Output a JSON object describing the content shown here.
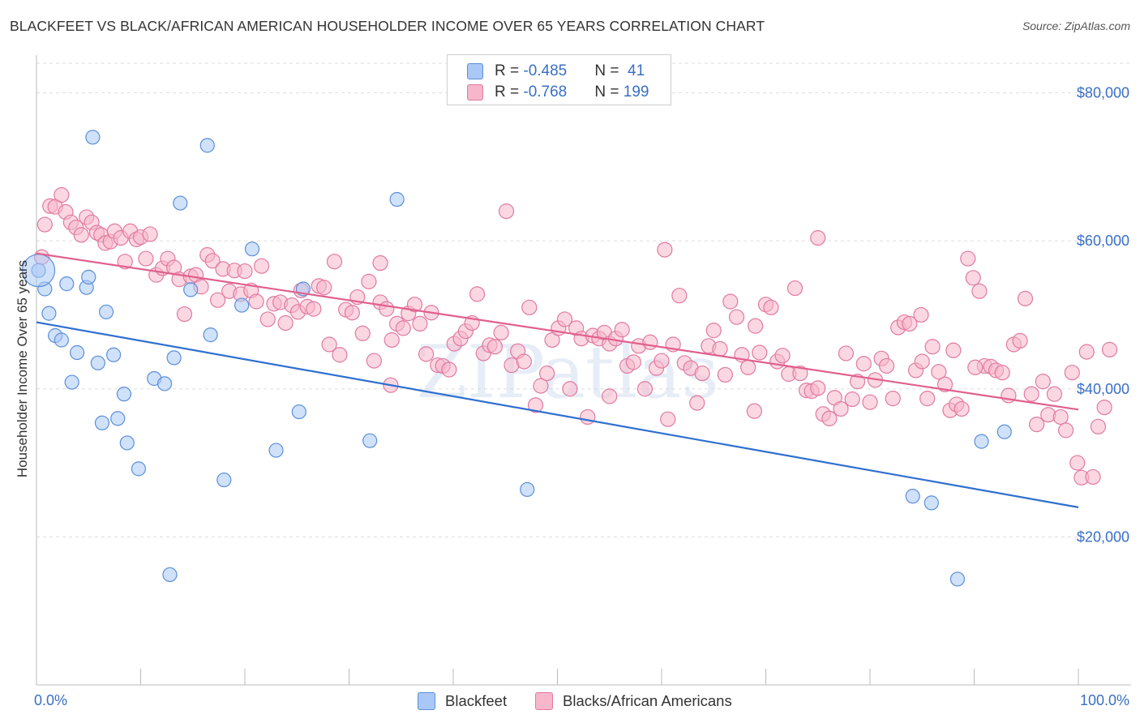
{
  "header": {
    "title": "BLACKFEET VS BLACK/AFRICAN AMERICAN HOUSEHOLDER INCOME OVER 65 YEARS CORRELATION CHART",
    "source": "Source: ZipAtlas.com"
  },
  "watermark": "ZIPatlas",
  "legend": {
    "rows": [
      {
        "r_label": "R = ",
        "r_value": "-0.485",
        "n_label": "N = ",
        "n_value": " 41",
        "color": "#a9c8f5"
      },
      {
        "r_label": "R = ",
        "r_value": "-0.768",
        "n_label": "N = ",
        "n_value": "199",
        "color": "#f7b6ca"
      }
    ]
  },
  "bottom_legend": [
    {
      "label": "Blackfeet",
      "color": "#a9c8f5"
    },
    {
      "label": "Blacks/African Americans",
      "color": "#f7b6ca"
    }
  ],
  "colors": {
    "blue_fill": "#a9c8f5",
    "blue_stroke": "#5b8fd9",
    "blue_line": "#2f6fd0",
    "pink_fill": "#f7b6ca",
    "pink_stroke": "#e07aa0",
    "pink_line": "#e0608e",
    "grid": "#dddddd",
    "tick_text": "#3a6fc4"
  },
  "chart_data": {
    "type": "scatter",
    "title": "BLACKFEET VS BLACK/AFRICAN AMERICAN HOUSEHOLDER INCOME OVER 65 YEARS CORRELATION CHART",
    "xlabel": "",
    "ylabel": "Householder Income Over 65 years",
    "xlim": [
      0,
      100
    ],
    "ylim": [
      0,
      84000
    ],
    "x_tick_labels": [
      "0.0%",
      "100.0%"
    ],
    "y_ticks": [
      20000,
      40000,
      60000,
      80000
    ],
    "y_tick_labels": [
      "$20,000",
      "$40,000",
      "$60,000",
      "$80,000"
    ],
    "grid": true,
    "legend_position": "top-center",
    "series": [
      {
        "name": "Blackfeet",
        "trend": {
          "x": [
            0,
            100
          ],
          "y": [
            49000,
            24000
          ]
        },
        "points": [
          [
            0.2,
            56000
          ],
          [
            0.8,
            53500
          ],
          [
            1.2,
            50200
          ],
          [
            1.8,
            47200
          ],
          [
            2.4,
            46600
          ],
          [
            2.9,
            54200
          ],
          [
            3.4,
            40900
          ],
          [
            3.9,
            44900
          ],
          [
            4.8,
            53700
          ],
          [
            5.0,
            55100
          ],
          [
            5.4,
            74000
          ],
          [
            5.9,
            43500
          ],
          [
            6.3,
            35400
          ],
          [
            6.7,
            50400
          ],
          [
            7.4,
            44600
          ],
          [
            7.8,
            36000
          ],
          [
            8.4,
            39300
          ],
          [
            8.7,
            32700
          ],
          [
            9.8,
            29200
          ],
          [
            11.3,
            41400
          ],
          [
            12.3,
            40700
          ],
          [
            12.8,
            14900
          ],
          [
            13.2,
            44200
          ],
          [
            13.8,
            65100
          ],
          [
            14.8,
            53400
          ],
          [
            16.4,
            72900
          ],
          [
            16.7,
            47300
          ],
          [
            18.0,
            27700
          ],
          [
            19.7,
            51300
          ],
          [
            20.7,
            58900
          ],
          [
            23.0,
            31700
          ],
          [
            25.2,
            36900
          ],
          [
            25.6,
            53500
          ],
          [
            32.0,
            33000
          ],
          [
            34.6,
            65600
          ],
          [
            47.1,
            26400
          ],
          [
            84.1,
            25500
          ],
          [
            85.9,
            24600
          ],
          [
            88.4,
            14300
          ],
          [
            90.7,
            32900
          ],
          [
            92.9,
            34200
          ]
        ]
      },
      {
        "name": "Blacks/African Americans",
        "trend": {
          "x": [
            0,
            100
          ],
          "y": [
            58300,
            37200
          ]
        },
        "points": [
          [
            0.5,
            57800
          ],
          [
            0.8,
            62200
          ],
          [
            1.3,
            64700
          ],
          [
            1.8,
            64600
          ],
          [
            2.4,
            66200
          ],
          [
            2.8,
            63900
          ],
          [
            3.3,
            62500
          ],
          [
            3.8,
            61800
          ],
          [
            4.3,
            60800
          ],
          [
            4.8,
            63200
          ],
          [
            5.3,
            62500
          ],
          [
            5.8,
            61100
          ],
          [
            6.2,
            60800
          ],
          [
            6.6,
            59700
          ],
          [
            7.1,
            59900
          ],
          [
            7.5,
            61300
          ],
          [
            8.1,
            60400
          ],
          [
            8.5,
            57200
          ],
          [
            9.0,
            61300
          ],
          [
            9.6,
            60200
          ],
          [
            10.0,
            60500
          ],
          [
            10.5,
            57600
          ],
          [
            10.9,
            60900
          ],
          [
            11.5,
            55400
          ],
          [
            12.1,
            56300
          ],
          [
            12.6,
            57600
          ],
          [
            13.2,
            56400
          ],
          [
            13.7,
            54800
          ],
          [
            14.2,
            50100
          ],
          [
            14.8,
            55200
          ],
          [
            15.3,
            55400
          ],
          [
            15.8,
            53800
          ],
          [
            16.4,
            58100
          ],
          [
            16.9,
            57300
          ],
          [
            17.4,
            52000
          ],
          [
            17.9,
            56200
          ],
          [
            18.5,
            53200
          ],
          [
            19.0,
            56000
          ],
          [
            19.6,
            52800
          ],
          [
            20.0,
            55900
          ],
          [
            20.6,
            53300
          ],
          [
            21.1,
            51800
          ],
          [
            21.6,
            56600
          ],
          [
            22.2,
            49400
          ],
          [
            22.8,
            51500
          ],
          [
            23.4,
            51700
          ],
          [
            23.9,
            48900
          ],
          [
            24.5,
            51300
          ],
          [
            25.1,
            50400
          ],
          [
            25.4,
            53300
          ],
          [
            26.0,
            51100
          ],
          [
            26.6,
            50800
          ],
          [
            27.1,
            53900
          ],
          [
            27.6,
            53700
          ],
          [
            28.1,
            46000
          ],
          [
            28.6,
            57200
          ],
          [
            29.1,
            44600
          ],
          [
            29.7,
            50700
          ],
          [
            30.3,
            50300
          ],
          [
            30.8,
            52400
          ],
          [
            31.3,
            47500
          ],
          [
            31.9,
            54500
          ],
          [
            32.4,
            43800
          ],
          [
            33.0,
            51700
          ],
          [
            33.6,
            50800
          ],
          [
            34.1,
            46600
          ],
          [
            34.6,
            48800
          ],
          [
            35.2,
            48200
          ],
          [
            35.7,
            50200
          ],
          [
            36.3,
            51400
          ],
          [
            36.8,
            48800
          ],
          [
            37.4,
            44700
          ],
          [
            37.9,
            50300
          ],
          [
            38.5,
            43200
          ],
          [
            39.0,
            43100
          ],
          [
            39.6,
            42600
          ],
          [
            40.1,
            46100
          ],
          [
            40.7,
            46800
          ],
          [
            41.2,
            47800
          ],
          [
            41.8,
            48900
          ],
          [
            42.3,
            52800
          ],
          [
            42.9,
            44800
          ],
          [
            43.5,
            45900
          ],
          [
            44.0,
            45700
          ],
          [
            44.6,
            47600
          ],
          [
            45.1,
            64000
          ],
          [
            45.6,
            43200
          ],
          [
            46.2,
            45100
          ],
          [
            46.8,
            43700
          ],
          [
            47.3,
            51000
          ],
          [
            47.9,
            37800
          ],
          [
            48.4,
            40400
          ],
          [
            49.0,
            42100
          ],
          [
            49.5,
            46600
          ],
          [
            50.1,
            48200
          ],
          [
            50.7,
            49400
          ],
          [
            51.2,
            40000
          ],
          [
            51.8,
            48200
          ],
          [
            52.3,
            46800
          ],
          [
            52.9,
            36200
          ],
          [
            53.4,
            47200
          ],
          [
            54.0,
            46800
          ],
          [
            54.5,
            47600
          ],
          [
            55.0,
            46100
          ],
          [
            55.6,
            46800
          ],
          [
            56.2,
            48000
          ],
          [
            56.7,
            43100
          ],
          [
            57.3,
            43600
          ],
          [
            57.8,
            45800
          ],
          [
            58.4,
            40000
          ],
          [
            58.9,
            46300
          ],
          [
            59.5,
            42800
          ],
          [
            60.0,
            43800
          ],
          [
            60.6,
            35900
          ],
          [
            61.1,
            46000
          ],
          [
            61.7,
            52600
          ],
          [
            62.2,
            43500
          ],
          [
            62.8,
            42800
          ],
          [
            63.4,
            38100
          ],
          [
            63.9,
            42100
          ],
          [
            64.5,
            45800
          ],
          [
            65.0,
            47900
          ],
          [
            65.6,
            45400
          ],
          [
            66.1,
            41900
          ],
          [
            66.6,
            51800
          ],
          [
            67.2,
            49700
          ],
          [
            67.7,
            44600
          ],
          [
            68.3,
            42900
          ],
          [
            68.9,
            37000
          ],
          [
            69.4,
            44900
          ],
          [
            70.0,
            51400
          ],
          [
            70.5,
            51000
          ],
          [
            71.1,
            43700
          ],
          [
            71.6,
            44500
          ],
          [
            72.2,
            42000
          ],
          [
            72.8,
            53600
          ],
          [
            73.3,
            42100
          ],
          [
            73.9,
            39800
          ],
          [
            74.4,
            39700
          ],
          [
            75.0,
            40100
          ],
          [
            75.5,
            36600
          ],
          [
            76.1,
            36000
          ],
          [
            76.6,
            38800
          ],
          [
            77.2,
            37300
          ],
          [
            77.7,
            44800
          ],
          [
            78.3,
            38600
          ],
          [
            78.8,
            41000
          ],
          [
            79.4,
            43400
          ],
          [
            80.0,
            38200
          ],
          [
            80.5,
            41200
          ],
          [
            81.1,
            44100
          ],
          [
            81.6,
            43100
          ],
          [
            82.2,
            38700
          ],
          [
            82.7,
            48300
          ],
          [
            83.3,
            49000
          ],
          [
            83.8,
            48800
          ],
          [
            84.4,
            42500
          ],
          [
            84.9,
            50000
          ],
          [
            85.5,
            38700
          ],
          [
            86.0,
            45700
          ],
          [
            86.6,
            42300
          ],
          [
            87.2,
            40600
          ],
          [
            87.7,
            37100
          ],
          [
            88.3,
            37900
          ],
          [
            88.8,
            37300
          ],
          [
            89.4,
            57600
          ],
          [
            89.9,
            55000
          ],
          [
            90.5,
            53200
          ],
          [
            91.0,
            43100
          ],
          [
            91.6,
            43000
          ],
          [
            92.1,
            42500
          ],
          [
            92.7,
            42200
          ],
          [
            93.3,
            39100
          ],
          [
            93.8,
            46000
          ],
          [
            94.4,
            46500
          ],
          [
            94.9,
            52200
          ],
          [
            95.5,
            39300
          ],
          [
            96.0,
            35200
          ],
          [
            96.6,
            41000
          ],
          [
            97.1,
            36500
          ],
          [
            97.7,
            39300
          ],
          [
            98.3,
            36200
          ],
          [
            98.8,
            34400
          ],
          [
            99.4,
            42200
          ],
          [
            99.9,
            30000
          ],
          [
            100.3,
            28000
          ],
          [
            100.8,
            45000
          ],
          [
            101.4,
            28100
          ],
          [
            101.9,
            34900
          ],
          [
            102.5,
            37500
          ],
          [
            103.0,
            45300
          ],
          [
            90.1,
            42900
          ],
          [
            88.0,
            45200
          ],
          [
            69.0,
            48500
          ],
          [
            60.3,
            58800
          ],
          [
            55.0,
            39000
          ],
          [
            33.0,
            57000
          ],
          [
            34.0,
            40500
          ],
          [
            75.0,
            60400
          ],
          [
            85.0,
            43700
          ]
        ]
      }
    ]
  }
}
